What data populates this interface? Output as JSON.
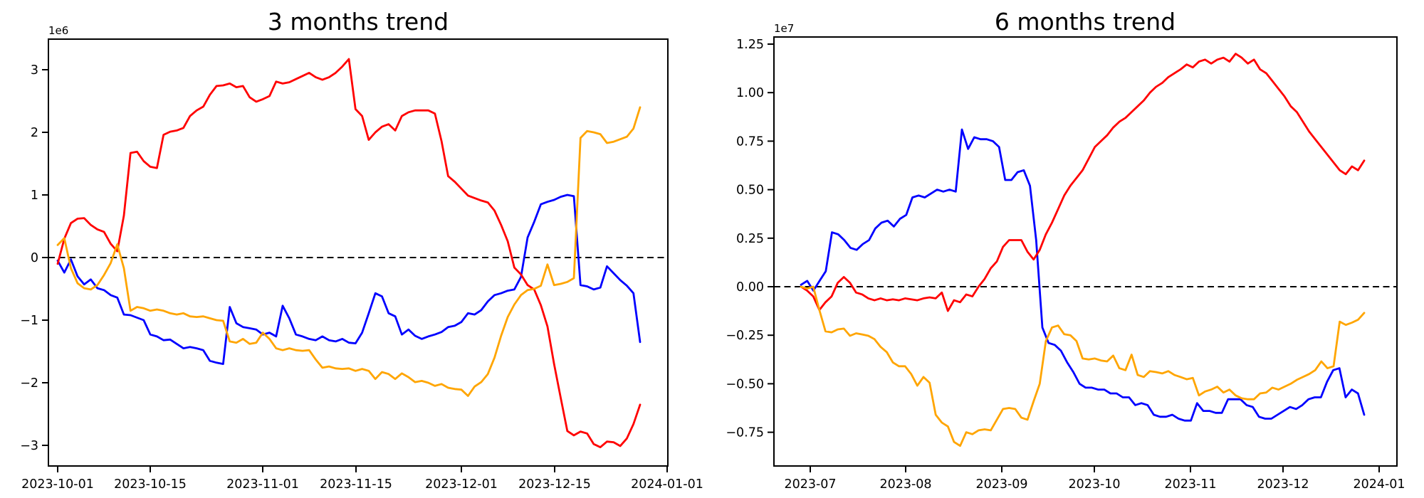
{
  "figure": {
    "background": "#ffffff",
    "left_title": "3 months trend",
    "right_title": "6 months trend"
  },
  "chart_data": [
    {
      "type": "line",
      "title": "3 months trend",
      "y_offset_label": "1e6",
      "value_scale": 1000000,
      "grid": false,
      "legend": "none",
      "zero_dashed_line": true,
      "x_start_date": "2023-10-01",
      "x_end_date": "2023-12-28",
      "x_tick_labels": [
        "2023-10-01",
        "2023-10-15",
        "2023-11-01",
        "2023-11-15",
        "2023-12-01",
        "2023-12-15",
        "2024-01-01"
      ],
      "y_tick_labels": [
        "3",
        "2",
        "1",
        "0",
        "−1",
        "−2",
        "−3"
      ],
      "y_tick_values": [
        3,
        2,
        1,
        0,
        -1,
        -2,
        -3
      ],
      "ylim": [
        -3.33,
        3.49
      ],
      "series": [
        {
          "name": "blue",
          "color": "#0000ff",
          "values": [
            -0.05,
            -0.24,
            -0.03,
            -0.3,
            -0.43,
            -0.35,
            -0.49,
            -0.52,
            -0.6,
            -0.64,
            -0.91,
            -0.92,
            -0.96,
            -1.0,
            -1.23,
            -1.26,
            -1.32,
            -1.31,
            -1.38,
            -1.45,
            -1.43,
            -1.45,
            -1.48,
            -1.65,
            -1.68,
            -1.7,
            -0.79,
            -1.05,
            -1.11,
            -1.13,
            -1.15,
            -1.23,
            -1.2,
            -1.26,
            -0.77,
            -0.97,
            -1.23,
            -1.26,
            -1.3,
            -1.32,
            -1.26,
            -1.32,
            -1.34,
            -1.3,
            -1.36,
            -1.37,
            -1.2,
            -0.89,
            -0.57,
            -0.62,
            -0.89,
            -0.94,
            -1.23,
            -1.15,
            -1.25,
            -1.3,
            -1.26,
            -1.23,
            -1.19,
            -1.11,
            -1.09,
            -1.03,
            -0.89,
            -0.91,
            -0.84,
            -0.7,
            -0.6,
            -0.57,
            -0.53,
            -0.51,
            -0.31,
            0.32,
            0.57,
            0.85,
            0.89,
            0.92,
            0.97,
            1.0,
            0.98,
            -0.44,
            -0.46,
            -0.51,
            -0.48,
            -0.14,
            -0.25,
            -0.36,
            -0.45,
            -0.57,
            -1.35
          ]
        },
        {
          "name": "red",
          "color": "#ff0000",
          "values": [
            -0.1,
            0.3,
            0.55,
            0.62,
            0.63,
            0.52,
            0.45,
            0.41,
            0.22,
            0.1,
            0.67,
            1.67,
            1.69,
            1.54,
            1.45,
            1.43,
            1.96,
            2.01,
            2.03,
            2.07,
            2.26,
            2.35,
            2.41,
            2.6,
            2.74,
            2.75,
            2.78,
            2.72,
            2.74,
            2.56,
            2.49,
            2.53,
            2.58,
            2.81,
            2.78,
            2.8,
            2.85,
            2.9,
            2.95,
            2.88,
            2.84,
            2.88,
            2.95,
            3.05,
            3.17,
            2.37,
            2.26,
            1.88,
            2.0,
            2.09,
            2.13,
            2.03,
            2.26,
            2.32,
            2.35,
            2.35,
            2.35,
            2.3,
            1.86,
            1.3,
            1.21,
            1.1,
            0.99,
            0.95,
            0.91,
            0.88,
            0.75,
            0.52,
            0.26,
            -0.16,
            -0.27,
            -0.44,
            -0.51,
            -0.76,
            -1.1,
            -1.7,
            -2.24,
            -2.77,
            -2.84,
            -2.78,
            -2.81,
            -2.98,
            -3.03,
            -2.94,
            -2.95,
            -3.01,
            -2.89,
            -2.66,
            -2.35
          ]
        },
        {
          "name": "orange",
          "color": "#ffa500",
          "values": [
            0.2,
            0.31,
            -0.17,
            -0.41,
            -0.49,
            -0.51,
            -0.44,
            -0.28,
            -0.09,
            0.21,
            -0.17,
            -0.85,
            -0.79,
            -0.81,
            -0.85,
            -0.83,
            -0.85,
            -0.89,
            -0.91,
            -0.89,
            -0.94,
            -0.95,
            -0.94,
            -0.97,
            -1.0,
            -1.01,
            -1.34,
            -1.36,
            -1.3,
            -1.38,
            -1.36,
            -1.2,
            -1.3,
            -1.45,
            -1.48,
            -1.45,
            -1.48,
            -1.49,
            -1.48,
            -1.63,
            -1.76,
            -1.74,
            -1.77,
            -1.78,
            -1.77,
            -1.81,
            -1.78,
            -1.81,
            -1.94,
            -1.83,
            -1.86,
            -1.94,
            -1.85,
            -1.91,
            -1.99,
            -1.97,
            -2.0,
            -2.05,
            -2.02,
            -2.08,
            -2.1,
            -2.11,
            -2.21,
            -2.06,
            -1.99,
            -1.86,
            -1.6,
            -1.25,
            -0.95,
            -0.75,
            -0.6,
            -0.52,
            -0.5,
            -0.45,
            -0.11,
            -0.44,
            -0.42,
            -0.39,
            -0.33,
            1.91,
            2.02,
            2.0,
            1.97,
            1.83,
            1.85,
            1.89,
            1.93,
            2.06,
            2.4
          ]
        }
      ]
    },
    {
      "type": "line",
      "title": "6 months trend",
      "y_offset_label": "1e7",
      "value_scale": 10000000,
      "grid": false,
      "legend": "none",
      "zero_dashed_line": true,
      "x_start_date": "2023-06-28",
      "x_end_date": "2023-12-28",
      "x_tick_labels": [
        "2023-07",
        "2023-08",
        "2023-09",
        "2023-10",
        "2023-11",
        "2023-12",
        "2024-01"
      ],
      "y_tick_labels": [
        "1.25",
        "1.00",
        "0.75",
        "0.50",
        "0.25",
        "0.00",
        "−0.25",
        "−0.50",
        "−0.75"
      ],
      "y_tick_values": [
        1.25,
        1.0,
        0.75,
        0.5,
        0.25,
        0.0,
        -0.25,
        -0.5,
        -0.75
      ],
      "ylim": [
        -0.92,
        1.29
      ],
      "series": [
        {
          "name": "blue",
          "color": "#0000ff",
          "values": [
            0.01,
            0.03,
            -0.02,
            0.03,
            0.08,
            0.28,
            0.27,
            0.24,
            0.2,
            0.19,
            0.22,
            0.24,
            0.3,
            0.33,
            0.34,
            0.31,
            0.35,
            0.37,
            0.46,
            0.47,
            0.46,
            0.48,
            0.5,
            0.49,
            0.5,
            0.49,
            0.81,
            0.71,
            0.77,
            0.76,
            0.76,
            0.75,
            0.72,
            0.55,
            0.55,
            0.59,
            0.6,
            0.52,
            0.24,
            -0.21,
            -0.29,
            -0.3,
            -0.33,
            -0.39,
            -0.44,
            -0.5,
            -0.52,
            -0.52,
            -0.53,
            -0.53,
            -0.55,
            -0.55,
            -0.57,
            -0.57,
            -0.61,
            -0.6,
            -0.61,
            -0.66,
            -0.67,
            -0.67,
            -0.66,
            -0.68,
            -0.69,
            -0.69,
            -0.6,
            -0.64,
            -0.64,
            -0.65,
            -0.65,
            -0.58,
            -0.58,
            -0.58,
            -0.61,
            -0.62,
            -0.67,
            -0.68,
            -0.68,
            -0.66,
            -0.64,
            -0.62,
            -0.63,
            -0.61,
            -0.58,
            -0.57,
            -0.57,
            -0.49,
            -0.43,
            -0.42,
            -0.57,
            -0.53,
            -0.55,
            -0.66
          ]
        },
        {
          "name": "red",
          "color": "#ff0000",
          "values": [
            0.0,
            -0.02,
            -0.05,
            -0.12,
            -0.08,
            -0.05,
            0.02,
            0.05,
            0.02,
            -0.03,
            -0.04,
            -0.06,
            -0.07,
            -0.06,
            -0.07,
            -0.065,
            -0.07,
            -0.06,
            -0.065,
            -0.07,
            -0.06,
            -0.055,
            -0.06,
            -0.03,
            -0.125,
            -0.07,
            -0.08,
            -0.04,
            -0.05,
            0.0,
            0.04,
            0.095,
            0.13,
            0.205,
            0.24,
            0.24,
            0.24,
            0.18,
            0.14,
            0.19,
            0.27,
            0.33,
            0.4,
            0.47,
            0.52,
            0.56,
            0.6,
            0.66,
            0.72,
            0.75,
            0.78,
            0.82,
            0.85,
            0.87,
            0.9,
            0.93,
            0.96,
            1.0,
            1.03,
            1.05,
            1.08,
            1.1,
            1.12,
            1.145,
            1.13,
            1.16,
            1.17,
            1.15,
            1.17,
            1.18,
            1.16,
            1.2,
            1.18,
            1.15,
            1.17,
            1.12,
            1.1,
            1.06,
            1.02,
            0.98,
            0.93,
            0.9,
            0.85,
            0.8,
            0.76,
            0.72,
            0.68,
            0.64,
            0.6,
            0.58,
            0.62,
            0.6,
            0.65
          ]
        },
        {
          "name": "orange",
          "color": "#ffa500",
          "values": [
            0.0,
            -0.01,
            0.0,
            -0.12,
            -0.23,
            -0.235,
            -0.22,
            -0.216,
            -0.253,
            -0.24,
            -0.246,
            -0.253,
            -0.27,
            -0.31,
            -0.337,
            -0.39,
            -0.41,
            -0.41,
            -0.45,
            -0.51,
            -0.465,
            -0.495,
            -0.66,
            -0.7,
            -0.72,
            -0.8,
            -0.82,
            -0.75,
            -0.76,
            -0.74,
            -0.735,
            -0.74,
            -0.685,
            -0.63,
            -0.625,
            -0.63,
            -0.675,
            -0.685,
            -0.59,
            -0.5,
            -0.28,
            -0.21,
            -0.2,
            -0.245,
            -0.25,
            -0.28,
            -0.37,
            -0.375,
            -0.37,
            -0.38,
            -0.385,
            -0.355,
            -0.42,
            -0.43,
            -0.35,
            -0.455,
            -0.465,
            -0.435,
            -0.44,
            -0.447,
            -0.435,
            -0.455,
            -0.465,
            -0.477,
            -0.47,
            -0.56,
            -0.54,
            -0.53,
            -0.515,
            -0.545,
            -0.53,
            -0.56,
            -0.575,
            -0.58,
            -0.58,
            -0.55,
            -0.545,
            -0.52,
            -0.53,
            -0.515,
            -0.5,
            -0.48,
            -0.465,
            -0.45,
            -0.43,
            -0.385,
            -0.42,
            -0.41,
            -0.18,
            -0.197,
            -0.185,
            -0.17,
            -0.135
          ]
        }
      ]
    }
  ]
}
